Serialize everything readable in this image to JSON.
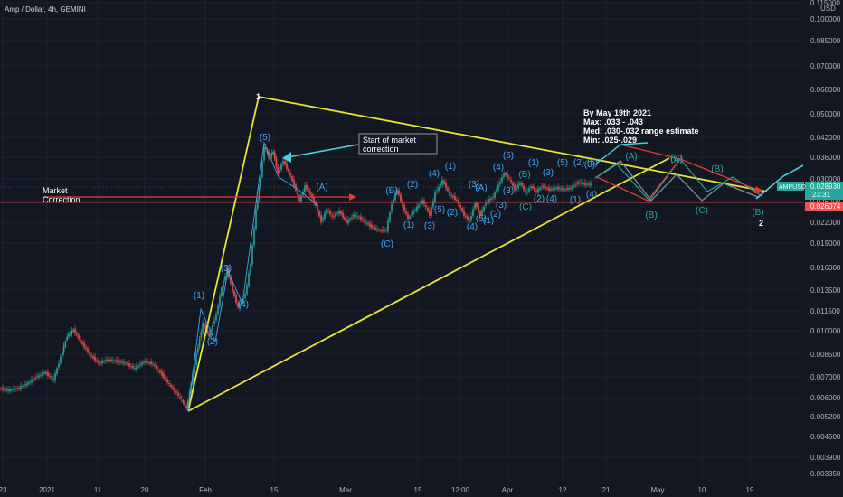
{
  "header": {
    "title": "Amp / Dollar, 4h, GEMINI"
  },
  "chart_data": {
    "type": "candlestick",
    "symbol": "AMPUSD",
    "title": "Amp / Dollar, 4h, GEMINI",
    "y_axis_unit": "USD",
    "y_ticks": [
      "0.115000",
      "0.100000",
      "0.085000",
      "0.070000",
      "0.060000",
      "0.050000",
      "0.042000",
      "0.036000",
      "0.030000",
      "0.026000",
      "0.022000",
      "0.019000",
      "0.016000",
      "0.013500",
      "0.011500",
      "0.010000",
      "0.008500",
      "0.007000",
      "0.006000",
      "0.005200",
      "0.004500",
      "0.003900",
      "0.003350"
    ],
    "x_ticks": [
      "23",
      "2021",
      "11",
      "20",
      "Feb",
      "15",
      "Mar",
      "15",
      "12:00",
      "Apr",
      "12",
      "21",
      "May",
      "10",
      "19"
    ],
    "last_price": {
      "label": "AMPUSD",
      "value": "0.028930",
      "countdown": "23:31",
      "color": "#26a69a"
    },
    "horizontal_level": {
      "value": "0.026074",
      "color": "#ef5350"
    },
    "colors": {
      "up": "#26a69a",
      "down": "#ef5350",
      "triangle": "#e7e33a",
      "wave_label": "#42a5f5",
      "correction_label": "#26a69a",
      "arrow_cyan": "#4dd0e1",
      "arrow_red": "#e53935",
      "projection": "#78909c"
    },
    "annotations": {
      "market_correction": [
        "Market",
        "Correction"
      ],
      "start_of_correction": [
        "Start of market",
        "correction"
      ],
      "forecast": [
        "By May 19th 2021",
        "Max: .033 - .043",
        "Med: .030-.032 range estimate",
        "Min: .025-.029"
      ],
      "triangle_top": "1",
      "wave_end": "2"
    },
    "wave_labels": [
      "(1)",
      "(2)",
      "(3)",
      "(4)",
      "(5)",
      "(A)",
      "(B)",
      "(C)",
      "(1)",
      "(2)",
      "(3)",
      "(4)",
      "(5)",
      "(1)",
      "(2)",
      "(3)",
      "(4)",
      "(5)",
      "(1)",
      "(2)",
      "(3)",
      "(4)",
      "(5)",
      "(A)",
      "(B)",
      "(C)",
      "(1)",
      "(2)",
      "(3)",
      "(4)",
      "(5)",
      "(1)",
      "(2)",
      "(3)",
      "(4)",
      "(5)",
      "(A)",
      "(B)",
      "(C)",
      "(B)",
      "(A)",
      "(B)",
      "(C)",
      "(3)"
    ]
  }
}
